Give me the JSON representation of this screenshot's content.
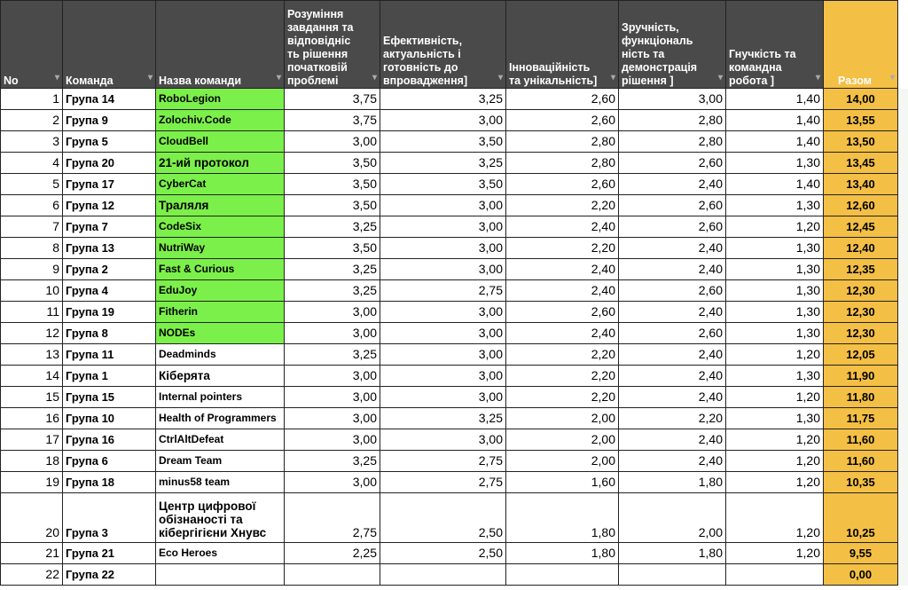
{
  "headers": [
    "No",
    "Команда",
    "Назва команди",
    "Розуміння завдання та відповідніс ть рішення початковій проблемі",
    "Ефективність, актуальність і готовність до впровадження]",
    "Інноваційність та унікальність]",
    "Зручність, функціональ ність та демонстрація рішення ]",
    "Гнучкість та командна робота ]",
    "Разом"
  ],
  "colors": {
    "header": "#4a4a4a",
    "highlight_green": "#7cf04a",
    "total": "#f3bf45"
  },
  "rows": [
    {
      "no": "1",
      "group": "Група 14",
      "name": "RoboLegion",
      "c1": "3,75",
      "c2": "3,25",
      "c3": "2,60",
      "c4": "3,00",
      "c5": "1,40",
      "total": "14,00",
      "highlight": true
    },
    {
      "no": "2",
      "group": "Група 9",
      "name": "Zolochiv.Code",
      "c1": "3,75",
      "c2": "3,00",
      "c3": "2,60",
      "c4": "2,80",
      "c5": "1,40",
      "total": "13,55",
      "highlight": true
    },
    {
      "no": "3",
      "group": "Група 5",
      "name": "CloudBell",
      "c1": "3,00",
      "c2": "3,50",
      "c3": "2,80",
      "c4": "2,80",
      "c5": "1,40",
      "total": "13,50",
      "highlight": true
    },
    {
      "no": "4",
      "group": "Група 20",
      "name": "21-ий протокол",
      "c1": "3,50",
      "c2": "3,25",
      "c3": "2,80",
      "c4": "2,60",
      "c5": "1,30",
      "total": "13,45",
      "highlight": true
    },
    {
      "no": "5",
      "group": "Група 17",
      "name": "CyberCat",
      "c1": "3,50",
      "c2": "3,50",
      "c3": "2,60",
      "c4": "2,40",
      "c5": "1,40",
      "total": "13,40",
      "highlight": true
    },
    {
      "no": "6",
      "group": "Група 12",
      "name": "Траляля",
      "c1": "3,50",
      "c2": "3,00",
      "c3": "2,20",
      "c4": "2,60",
      "c5": "1,30",
      "total": "12,60",
      "highlight": true
    },
    {
      "no": "7",
      "group": "Група 7",
      "name": "CodeSix",
      "c1": "3,25",
      "c2": "3,00",
      "c3": "2,40",
      "c4": "2,60",
      "c5": "1,20",
      "total": "12,45",
      "highlight": true
    },
    {
      "no": "8",
      "group": "Група 13",
      "name": "NutriWay",
      "c1": "3,50",
      "c2": "3,00",
      "c3": "2,20",
      "c4": "2,40",
      "c5": "1,30",
      "total": "12,40",
      "highlight": true
    },
    {
      "no": "9",
      "group": "Група 2",
      "name": "Fast & Curious",
      "c1": "3,25",
      "c2": "3,00",
      "c3": "2,40",
      "c4": "2,40",
      "c5": "1,30",
      "total": "12,35",
      "highlight": true
    },
    {
      "no": "10",
      "group": "Група 4",
      "name": "EduJoy",
      "c1": "3,25",
      "c2": "2,75",
      "c3": "2,40",
      "c4": "2,60",
      "c5": "1,30",
      "total": "12,30",
      "highlight": true
    },
    {
      "no": "11",
      "group": "Група 19",
      "name": "Fitherin",
      "c1": "3,00",
      "c2": "3,00",
      "c3": "2,60",
      "c4": "2,40",
      "c5": "1,30",
      "total": "12,30",
      "highlight": true
    },
    {
      "no": "12",
      "group": "Група 8",
      "name": "NODEs",
      "c1": "3,00",
      "c2": "3,00",
      "c3": "2,40",
      "c4": "2,60",
      "c5": "1,30",
      "total": "12,30",
      "highlight": true
    },
    {
      "no": "13",
      "group": "Група 11",
      "name": "Deadminds",
      "c1": "3,25",
      "c2": "3,00",
      "c3": "2,20",
      "c4": "2,40",
      "c5": "1,20",
      "total": "12,05",
      "highlight": false
    },
    {
      "no": "14",
      "group": "Група 1",
      "name": "Кіберята",
      "c1": "3,00",
      "c2": "3,00",
      "c3": "2,20",
      "c4": "2,40",
      "c5": "1,30",
      "total": "11,90",
      "highlight": false
    },
    {
      "no": "15",
      "group": "Група 15",
      "name": "Internal pointers",
      "c1": "3,00",
      "c2": "3,00",
      "c3": "2,20",
      "c4": "2,40",
      "c5": "1,20",
      "total": "11,80",
      "highlight": false
    },
    {
      "no": "16",
      "group": "Група 10",
      "name": "Health of Programmers",
      "c1": "3,00",
      "c2": "3,25",
      "c3": "2,00",
      "c4": "2,20",
      "c5": "1,30",
      "total": "11,75",
      "highlight": false
    },
    {
      "no": "17",
      "group": "Група 16",
      "name": "CtrlAltDefeat",
      "c1": "3,00",
      "c2": "3,00",
      "c3": "2,00",
      "c4": "2,40",
      "c5": "1,20",
      "total": "11,60",
      "highlight": false
    },
    {
      "no": "18",
      "group": "Група 6",
      "name": "Dream Team",
      "c1": "3,25",
      "c2": "2,75",
      "c3": "2,00",
      "c4": "2,40",
      "c5": "1,20",
      "total": "11,60",
      "highlight": false
    },
    {
      "no": "19",
      "group": "Група 18",
      "name": "minus58 team",
      "c1": "3,00",
      "c2": "2,75",
      "c3": "1,60",
      "c4": "1,80",
      "c5": "1,20",
      "total": "10,35",
      "highlight": false
    },
    {
      "no": "20",
      "group": "Група 3",
      "name": "Центр цифрової обізнаності та кібергігієни Хнувс",
      "c1": "2,75",
      "c2": "2,50",
      "c3": "1,80",
      "c4": "2,00",
      "c5": "1,20",
      "total": "10,25",
      "highlight": false
    },
    {
      "no": "21",
      "group": "Група 21",
      "name": "Eco Heroes",
      "c1": "2,25",
      "c2": "2,50",
      "c3": "1,80",
      "c4": "1,80",
      "c5": "1,20",
      "total": "9,55",
      "highlight": false
    },
    {
      "no": "22",
      "group": "Група 22",
      "name": "",
      "c1": "",
      "c2": "",
      "c3": "",
      "c4": "",
      "c5": "",
      "total": "0,00",
      "highlight": false
    }
  ]
}
